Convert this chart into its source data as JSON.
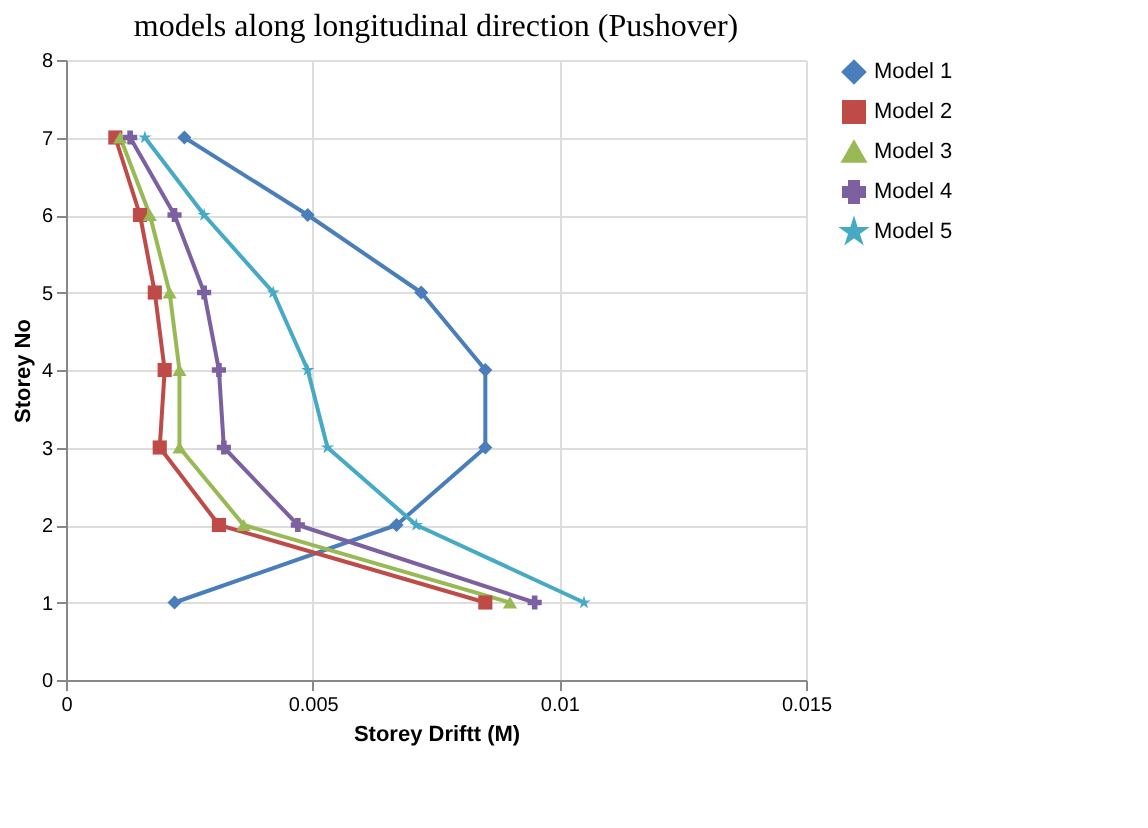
{
  "chart_data": {
    "type": "line",
    "title": "models along longitudinal direction (Pushover)",
    "xlabel": "Storey Driftt (M)",
    "ylabel": "Storey No",
    "xlim": [
      0,
      0.015
    ],
    "xticks": [
      0,
      0.005,
      0.01,
      0.015
    ],
    "ylim": [
      0,
      8
    ],
    "yticks": [
      0,
      1,
      2,
      3,
      4,
      5,
      6,
      7,
      8
    ],
    "grid": true,
    "legend": "right",
    "series": [
      {
        "name": "Model 1",
        "color": "#4a7ebb",
        "marker": "diamond",
        "x": [
          0.0022,
          0.0067,
          0.0085,
          0.0085,
          0.0072,
          0.0049,
          0.0024
        ],
        "values": [
          1,
          2,
          3,
          4,
          5,
          6,
          7
        ]
      },
      {
        "name": "Model 2",
        "color": "#be4b48",
        "marker": "square",
        "x": [
          0.0085,
          0.0031,
          0.0019,
          0.002,
          0.0018,
          0.0015,
          0.001
        ],
        "values": [
          1,
          2,
          3,
          4,
          5,
          6,
          7
        ]
      },
      {
        "name": "Model 3",
        "color": "#98b954",
        "marker": "triangle",
        "x": [
          0.009,
          0.0036,
          0.0023,
          0.0023,
          0.0021,
          0.0017,
          0.0011
        ],
        "values": [
          1,
          2,
          3,
          4,
          5,
          6,
          7
        ]
      },
      {
        "name": "Model 4",
        "color": "#7d60a0",
        "marker": "cross",
        "x": [
          0.0095,
          0.0047,
          0.0032,
          0.0031,
          0.0028,
          0.0022,
          0.0013
        ],
        "values": [
          1,
          2,
          3,
          4,
          5,
          6,
          7
        ]
      },
      {
        "name": "Model 5",
        "color": "#46aac5",
        "marker": "star",
        "x": [
          0.0105,
          0.0071,
          0.0053,
          0.0049,
          0.0042,
          0.0028,
          0.0016
        ],
        "values": [
          1,
          2,
          3,
          4,
          5,
          6,
          7
        ]
      }
    ]
  }
}
